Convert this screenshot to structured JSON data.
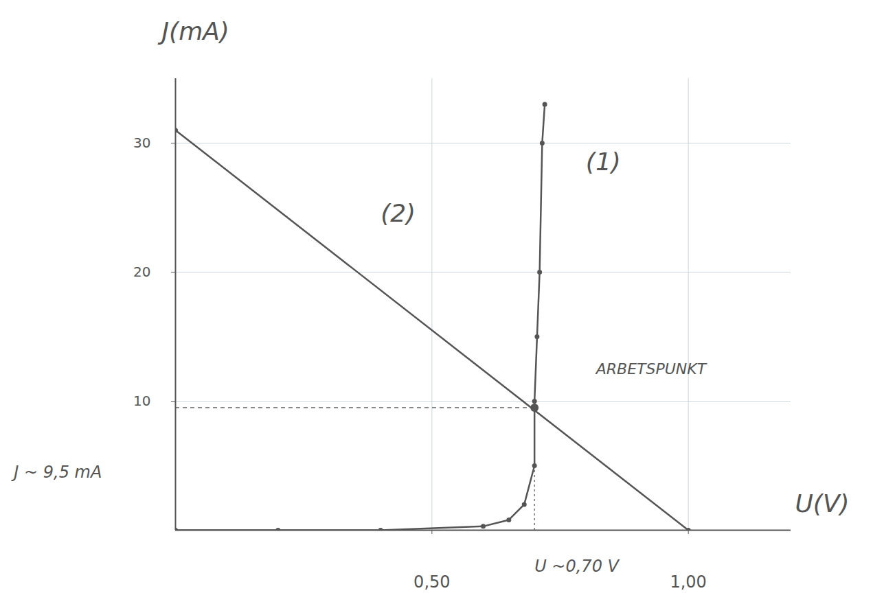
{
  "chart_data": {
    "type": "line",
    "x_label": "U(V)",
    "y_label": "J(mA)",
    "xlim": [
      0,
      1.2
    ],
    "ylim": [
      0,
      35
    ],
    "xticks": [
      {
        "value": 0.5,
        "label": "0,50"
      },
      {
        "value": 1.0,
        "label": "1,00"
      }
    ],
    "yticks": [
      10,
      20,
      30
    ],
    "grid": true,
    "tick_labels": true,
    "series": [
      {
        "name": "(1)",
        "color": "#555555",
        "marker": "dot",
        "line_style": "solid",
        "label_position": [
          0.8,
          28.5
        ],
        "x": [
          0,
          0.2,
          0.4,
          0.6,
          0.65,
          0.68,
          0.7,
          0.7,
          0.705,
          0.71,
          0.715,
          0.72
        ],
        "values": [
          0,
          0,
          0,
          0.3,
          0.8,
          2,
          5,
          10,
          15,
          20,
          30,
          33
        ]
      },
      {
        "name": "(2)",
        "color": "#555555",
        "marker": "dot",
        "line_style": "solid",
        "label_position": [
          0.4,
          24.5
        ],
        "x": [
          0,
          1.0
        ],
        "values": [
          31,
          0
        ]
      }
    ],
    "operating_point": {
      "x": 0.7,
      "y": 9.5,
      "label": "ARBETSPUNKT",
      "label_position": [
        0.82,
        12.5
      ]
    },
    "annotations": [
      {
        "text": "U ~0,70 V",
        "x": 0.7,
        "y": -2.8
      },
      {
        "text": "J ~ 9,5 mA",
        "x": -0.315,
        "y": 4.5
      }
    ]
  }
}
